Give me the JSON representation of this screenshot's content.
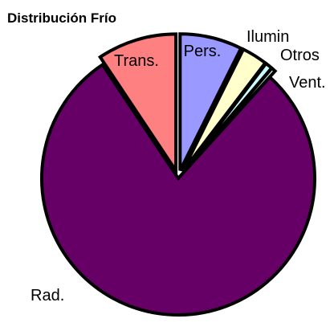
{
  "chart_data": {
    "type": "pie",
    "title": "Distribución Frío",
    "start_angle_deg": 0,
    "direction": "clockwise",
    "slices": [
      {
        "label": "Pers.",
        "value": 22.0,
        "color": "#9999ff",
        "exploded": true,
        "label_placement": "inside"
      },
      {
        "label": "Ilumin",
        "value": 9.0,
        "color": "#ffffcc",
        "exploded": true,
        "label_placement": "outside"
      },
      {
        "label": "Otros",
        "value": 2.5,
        "color": "#ccffff",
        "exploded": true,
        "label_placement": "outside"
      },
      {
        "label": "Vent.",
        "value": 1.5,
        "color": "#ccffff",
        "exploded": true,
        "label_placement": "outside"
      },
      {
        "label": "Rad.",
        "value": 236.0,
        "color": "#660066",
        "exploded": false,
        "label_placement": "outside"
      },
      {
        "label": "Trans.",
        "value": 28.0,
        "color": "#ff8080",
        "exploded": true,
        "label_placement": "inside"
      }
    ]
  }
}
